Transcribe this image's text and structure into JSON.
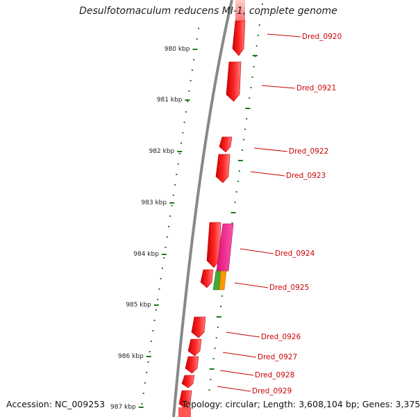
{
  "title": "Desulfotomaculum reducens MI-1, complete genome",
  "footer": {
    "accession_label": "Accession: NC_009253",
    "topology_label": "Topology: circular; Length: 3,608,104 bp; Genes: 3,375"
  },
  "colors": {
    "backbone": "#888888",
    "tick": "#1a7a1a",
    "gene": "#ee0000",
    "gene_highlight": "#ff7777",
    "gene_pink": "#ee1188",
    "gene_green": "#44aa33",
    "gene_orange": "#ff9900",
    "label": "#cc0000"
  },
  "kbp_ticks": [
    "980 kbp",
    "981 kbp",
    "982 kbp",
    "983 kbp",
    "984 kbp",
    "985 kbp",
    "986 kbp",
    "987 kbp"
  ],
  "gene_labels": [
    "Dred_0920",
    "Dred_0921",
    "Dred_0922",
    "Dred_0923",
    "Dred_0924",
    "Dred_0925",
    "Dred_0926",
    "Dred_0927",
    "Dred_0928",
    "Dred_0929"
  ]
}
